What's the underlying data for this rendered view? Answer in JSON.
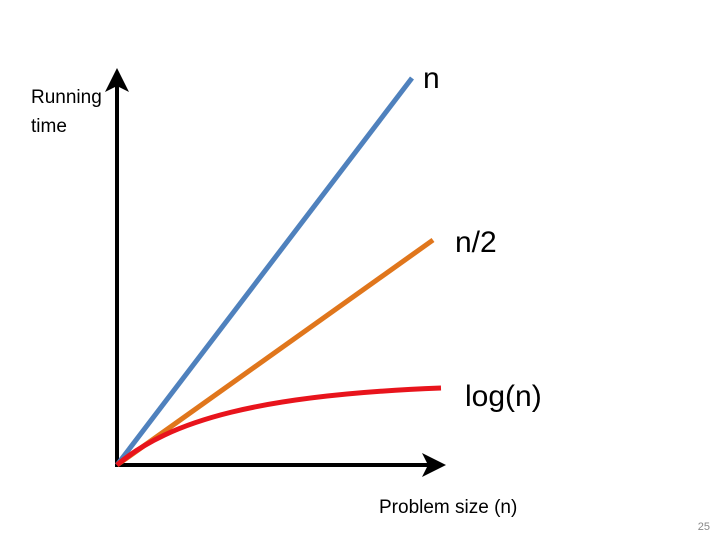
{
  "diagram": {
    "y_axis_label": [
      "Running",
      "time"
    ],
    "x_axis_label": "Problem size (n)",
    "curves": [
      {
        "label": "n"
      },
      {
        "label": "n/2"
      },
      {
        "label": "log(n)"
      }
    ]
  },
  "footer": {
    "page_number": "25"
  }
}
